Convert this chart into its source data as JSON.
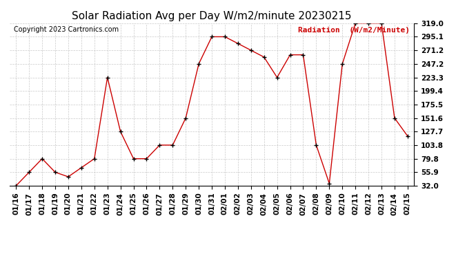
{
  "title": "Solar Radiation Avg per Day W/m2/minute 20230215",
  "copyright": "Copyright 2023 Cartronics.com",
  "legend_label": "Radiation  (W/m2/Minute)",
  "dates": [
    "01/16",
    "01/17",
    "01/18",
    "01/19",
    "01/20",
    "01/21",
    "01/22",
    "01/23",
    "01/24",
    "01/25",
    "01/26",
    "01/27",
    "01/28",
    "01/29",
    "01/30",
    "01/31",
    "02/01",
    "02/02",
    "02/03",
    "02/04",
    "02/05",
    "02/06",
    "02/07",
    "02/08",
    "02/09",
    "02/10",
    "02/11",
    "02/12",
    "02/13",
    "02/14",
    "02/15"
  ],
  "values": [
    32.0,
    55.9,
    79.8,
    55.9,
    47.9,
    63.9,
    79.8,
    223.3,
    127.7,
    79.8,
    79.8,
    103.8,
    103.8,
    151.6,
    247.2,
    295.1,
    295.1,
    283.2,
    271.2,
    259.2,
    223.3,
    263.2,
    263.2,
    103.8,
    36.0,
    247.2,
    319.0,
    319.0,
    319.0,
    151.6,
    119.7
  ],
  "line_color": "#cc0000",
  "marker": "+",
  "marker_color": "#000000",
  "background_color": "#ffffff",
  "plot_bg_color": "#ffffff",
  "grid_color": "#bbbbbb",
  "title_fontsize": 11,
  "tick_label_fontsize": 7.5,
  "ylabel_color": "#cc0000",
  "copyright_color": "#000000",
  "copyright_fontsize": 7,
  "legend_fontsize": 8,
  "ylim": [
    32.0,
    319.0
  ],
  "yticks": [
    32.0,
    55.9,
    79.8,
    103.8,
    127.7,
    151.6,
    175.5,
    199.4,
    223.3,
    247.2,
    271.2,
    295.1,
    319.0
  ]
}
